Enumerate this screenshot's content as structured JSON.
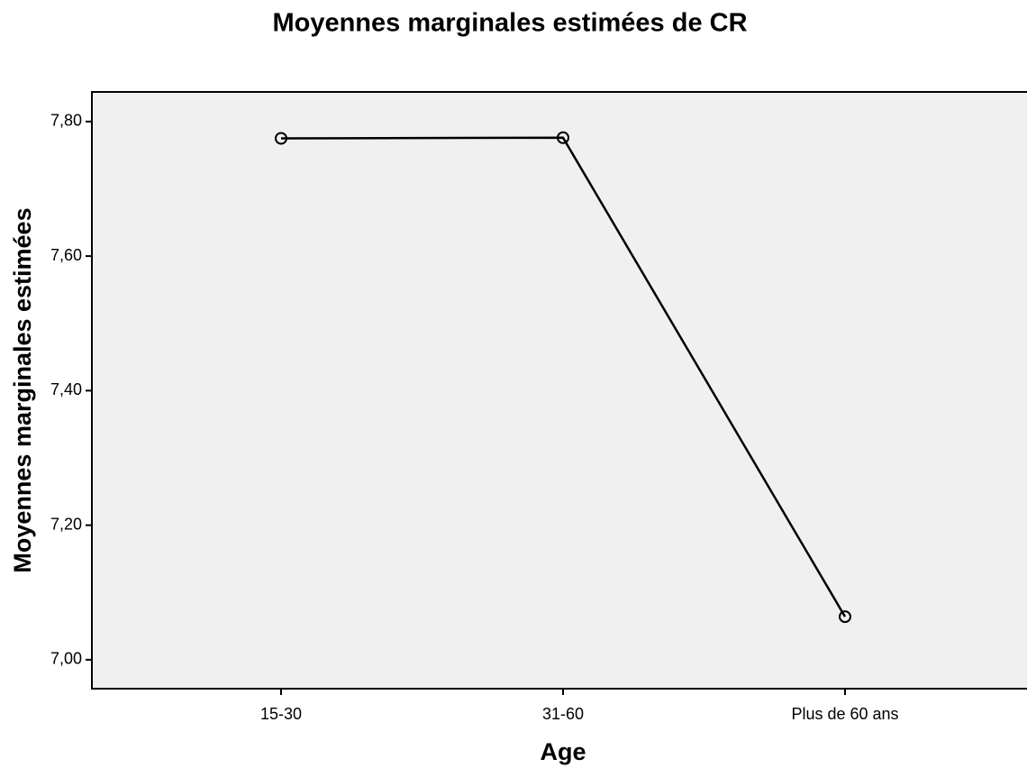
{
  "chart_data": {
    "type": "line",
    "title": "Moyennes marginales estimées de CR",
    "x_label": "Age",
    "y_label": "Moyennes marginales estimées",
    "categories": [
      "15-30",
      "31-60",
      "Plus de 60 ans"
    ],
    "values": [
      7.775,
      7.776,
      7.064
    ],
    "color": "#000000",
    "ylim": [
      6.957,
      7.844
    ],
    "yticks": [
      {
        "value": 7.0,
        "label": "7,00"
      },
      {
        "value": 7.2,
        "label": "7,20"
      },
      {
        "value": 7.4,
        "label": "7,40"
      },
      {
        "value": 7.6,
        "label": "7,60"
      },
      {
        "value": 7.8,
        "label": "7,80"
      }
    ],
    "grid": false
  }
}
